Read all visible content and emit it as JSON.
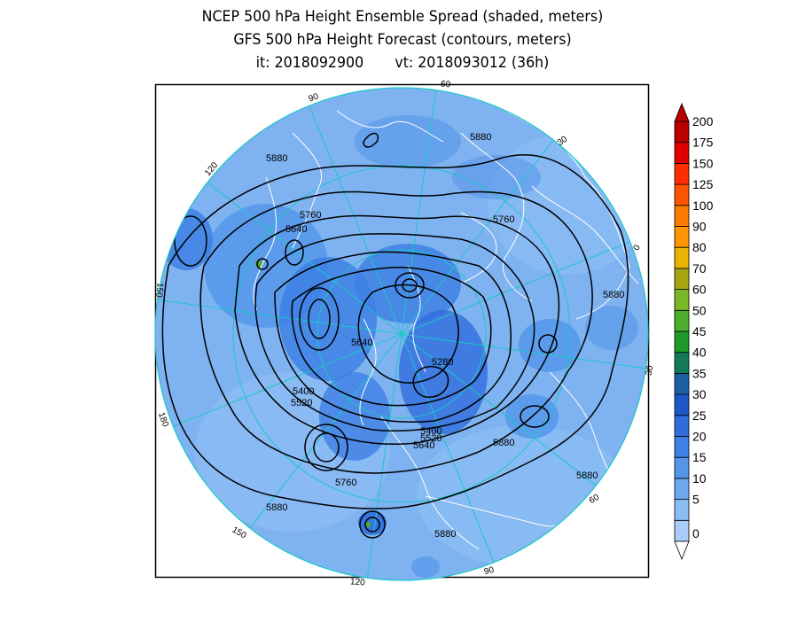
{
  "titles": {
    "line1": "NCEP 500 hPa Height Ensemble Spread (shaded, meters)",
    "line2": "GFS 500 hPa Height Forecast (contours, meters)",
    "line3": "it: 2018092900       vt: 2018093012 (36h)"
  },
  "map": {
    "projection": "north-polar-stereographic",
    "background_color": "#7fb2f0",
    "meridian_color": "#19c8c8",
    "coastline_color": "#ffffff",
    "contour_color": "#000000",
    "longitude_labels": [
      "60",
      "30",
      "0",
      "-30",
      "60",
      "90",
      "120",
      "150",
      "180",
      "150",
      "120",
      "90"
    ],
    "contour_labels": [
      "5880",
      "5880",
      "5760",
      "5640",
      "5760",
      "5880",
      "5640",
      "5400",
      "5520",
      "5280",
      "5400",
      "5520",
      "5640",
      "5880",
      "5880",
      "5760",
      "5880",
      "5880"
    ]
  },
  "colorbar": {
    "levels": [
      "0",
      "5",
      "10",
      "15",
      "20",
      "25",
      "30",
      "35",
      "40",
      "45",
      "50",
      "60",
      "70",
      "80",
      "90",
      "100",
      "125",
      "150",
      "175",
      "200"
    ],
    "colors": [
      "#a9ccf8",
      "#8bbdf5",
      "#6ea9ee",
      "#5596ea",
      "#3e80e4",
      "#2f6ddc",
      "#1e58c8",
      "#1a5fa0",
      "#137a57",
      "#1d9a2a",
      "#4cae2b",
      "#7bb826",
      "#a8a513",
      "#e8b400",
      "#ff9500",
      "#ff7a00",
      "#ff5500",
      "#ff2e00",
      "#e00000",
      "#bb0000"
    ]
  }
}
